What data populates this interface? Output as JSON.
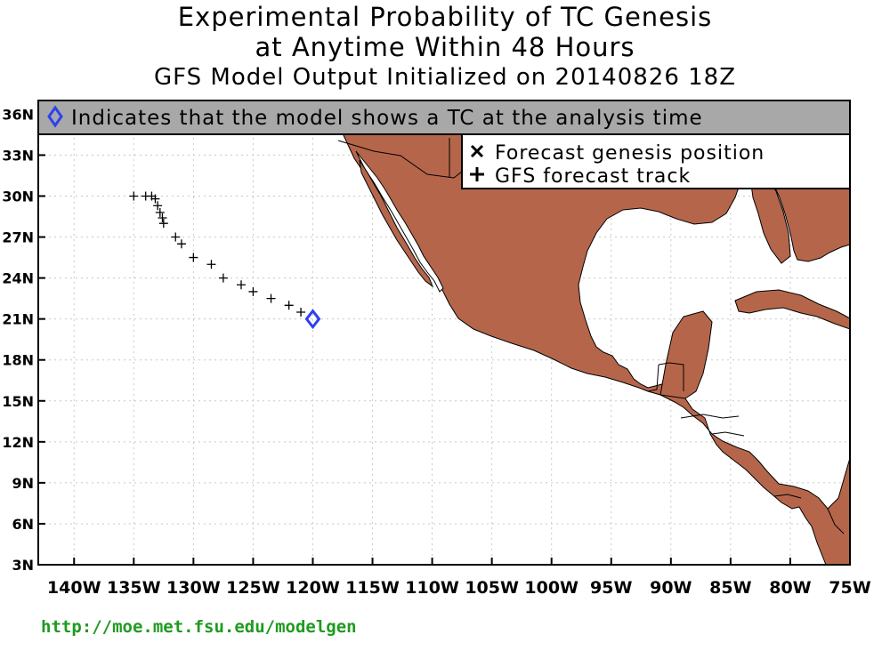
{
  "title": {
    "line1": "Experimental Probability of TC Genesis",
    "line2": "at Anytime Within 48 Hours",
    "line3": "GFS Model Output Initialized on 20140826 18Z"
  },
  "banner": {
    "icon": "diamond-icon",
    "text": "Indicates that the model shows a TC at the analysis time"
  },
  "legend": {
    "items": [
      {
        "symbol": "x-mark-icon",
        "label": "Forecast genesis position"
      },
      {
        "symbol": "plus-mark-icon",
        "label": "GFS forecast track"
      }
    ]
  },
  "map": {
    "lon_range": [
      -143,
      -75
    ],
    "lat_range": [
      3,
      37
    ],
    "x_tick_labels": [
      "140W",
      "135W",
      "130W",
      "125W",
      "120W",
      "115W",
      "110W",
      "105W",
      "100W",
      "95W",
      "90W",
      "85W",
      "80W",
      "75W"
    ],
    "y_tick_labels": [
      "3N",
      "6N",
      "9N",
      "12N",
      "15N",
      "18N",
      "21N",
      "24N",
      "27N",
      "30N",
      "33N",
      "36N"
    ],
    "land_color": "#b5664a",
    "grid": true,
    "forecast_track": [
      [
        -135.0,
        30.0
      ],
      [
        -134.0,
        30.0
      ],
      [
        -133.5,
        30.0
      ],
      [
        -133.2,
        29.8
      ],
      [
        -133.0,
        29.3
      ],
      [
        -132.8,
        28.8
      ],
      [
        -132.6,
        28.4
      ],
      [
        -132.5,
        28.0
      ],
      [
        -131.5,
        27.0
      ],
      [
        -131.0,
        26.5
      ],
      [
        -130.0,
        25.5
      ],
      [
        -128.5,
        25.0
      ],
      [
        -127.5,
        24.0
      ],
      [
        -126.0,
        23.5
      ],
      [
        -125.0,
        23.0
      ],
      [
        -123.5,
        22.5
      ],
      [
        -122.0,
        22.0
      ],
      [
        -121.0,
        21.5
      ]
    ],
    "analysis_tc": {
      "lon": -120.0,
      "lat": 21.0,
      "color": "#2f3ff0"
    }
  },
  "footer": {
    "url": "http://moe.met.fsu.edu/modelgen"
  }
}
